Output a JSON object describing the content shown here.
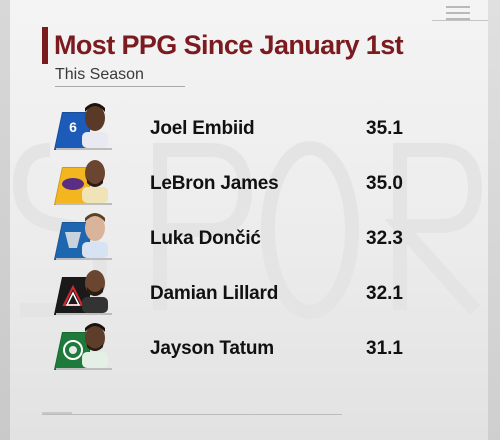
{
  "header": {
    "title": "Most PPG Since January 1st",
    "subtitle": "This Season"
  },
  "colors": {
    "title": "#7b1b20",
    "text": "#111111"
  },
  "players": [
    {
      "name": "Joel Embiid",
      "ppg": "35.1",
      "team_logo": "76ers-logo",
      "logo_color": "#1d5bb8",
      "logo_text": "6"
    },
    {
      "name": "LeBron James",
      "ppg": "35.0",
      "team_logo": "lakers-logo",
      "logo_color": "#f3b61f",
      "logo_text": ""
    },
    {
      "name": "Luka Dončić",
      "ppg": "32.3",
      "team_logo": "mavericks-logo",
      "logo_color": "#1f66b0",
      "logo_text": ""
    },
    {
      "name": "Damian Lillard",
      "ppg": "32.1",
      "team_logo": "blazers-logo",
      "logo_color": "#1a1a1a",
      "logo_text": ""
    },
    {
      "name": "Jayson Tatum",
      "ppg": "31.1",
      "team_logo": "celtics-logo",
      "logo_color": "#1d7a3a",
      "logo_text": ""
    }
  ]
}
